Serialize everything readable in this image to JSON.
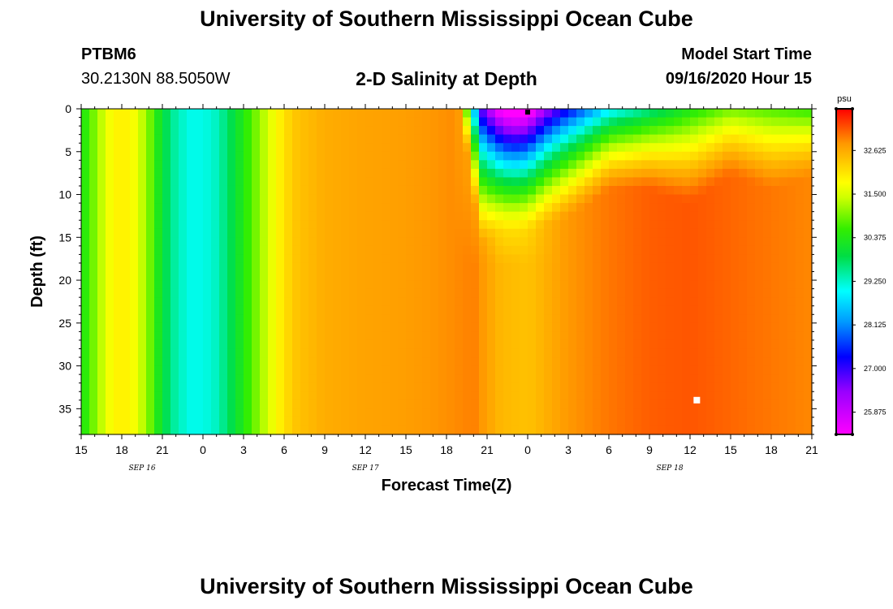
{
  "header": {
    "title": "University of Southern Mississippi Ocean Cube",
    "station_id": "PTBM6",
    "station_coords": "30.2130N 88.5050W",
    "chart_title": "2-D Salinity at Depth",
    "model_start_label": "Model Start Time",
    "model_start_value": "09/16/2020 Hour 15"
  },
  "footer": {
    "title": "University of Southern Mississippi Ocean Cube"
  },
  "chart_data": {
    "type": "heatmap",
    "title": "2-D Salinity at Depth",
    "xlabel": "Forecast Time(Z)",
    "ylabel": "Depth (ft)",
    "x_hours_range": [
      0,
      54
    ],
    "x_ticks": [
      {
        "h": 0,
        "label": "15"
      },
      {
        "h": 3,
        "label": "18"
      },
      {
        "h": 6,
        "label": "21"
      },
      {
        "h": 9,
        "label": "0"
      },
      {
        "h": 12,
        "label": "3"
      },
      {
        "h": 15,
        "label": "6"
      },
      {
        "h": 18,
        "label": "9"
      },
      {
        "h": 21,
        "label": "12"
      },
      {
        "h": 24,
        "label": "15"
      },
      {
        "h": 27,
        "label": "18"
      },
      {
        "h": 30,
        "label": "21"
      },
      {
        "h": 33,
        "label": "0"
      },
      {
        "h": 36,
        "label": "3"
      },
      {
        "h": 39,
        "label": "6"
      },
      {
        "h": 42,
        "label": "9"
      },
      {
        "h": 45,
        "label": "12"
      },
      {
        "h": 48,
        "label": "15"
      },
      {
        "h": 51,
        "label": "18"
      },
      {
        "h": 54,
        "label": "21"
      }
    ],
    "date_labels": [
      {
        "h": 4.5,
        "label": "SEP 16"
      },
      {
        "h": 21,
        "label": "SEP 17"
      },
      {
        "h": 43.5,
        "label": "SEP 18"
      }
    ],
    "y_range": [
      0,
      38
    ],
    "y_ticks": [
      0,
      5,
      10,
      15,
      20,
      25,
      30,
      35
    ],
    "colorbar": {
      "unit": "psu",
      "range": [
        25.3,
        33.7
      ],
      "labels": [
        "32.625",
        "31.500",
        "30.375",
        "29.250",
        "28.125",
        "27.000",
        "25.875"
      ],
      "label_values": [
        32.625,
        31.5,
        30.375,
        29.25,
        28.125,
        27.0,
        25.875
      ],
      "stops": [
        {
          "v": 25.3,
          "c": "#ff00ff"
        },
        {
          "v": 26.4,
          "c": "#9900ff"
        },
        {
          "v": 27.3,
          "c": "#0000ff"
        },
        {
          "v": 28.2,
          "c": "#0099ff"
        },
        {
          "v": 29.0,
          "c": "#00ffff"
        },
        {
          "v": 29.9,
          "c": "#00dd44"
        },
        {
          "v": 30.6,
          "c": "#33ee00"
        },
        {
          "v": 31.4,
          "c": "#ccff00"
        },
        {
          "v": 31.8,
          "c": "#ffff00"
        },
        {
          "v": 32.3,
          "c": "#ffcc00"
        },
        {
          "v": 32.8,
          "c": "#ff9900"
        },
        {
          "v": 33.2,
          "c": "#ff5500"
        },
        {
          "v": 33.7,
          "c": "#ff0000"
        }
      ]
    },
    "salinity_timeline": [
      {
        "h": 0,
        "s": 30.3
      },
      {
        "h": 1,
        "s": 31.0
      },
      {
        "h": 2,
        "s": 31.7
      },
      {
        "h": 3,
        "s": 32.0
      },
      {
        "h": 4,
        "s": 31.7
      },
      {
        "h": 5,
        "s": 31.0
      },
      {
        "h": 6,
        "s": 30.0
      },
      {
        "h": 7,
        "s": 29.4
      },
      {
        "h": 8,
        "s": 29.1
      },
      {
        "h": 9,
        "s": 29.1
      },
      {
        "h": 10,
        "s": 29.3
      },
      {
        "h": 11,
        "s": 29.8
      },
      {
        "h": 12,
        "s": 30.4
      },
      {
        "h": 13,
        "s": 31.0
      },
      {
        "h": 14,
        "s": 31.6
      },
      {
        "h": 15,
        "s": 32.1
      },
      {
        "h": 16,
        "s": 32.4
      },
      {
        "h": 18,
        "s": 32.6
      },
      {
        "h": 21,
        "s": 32.7
      },
      {
        "h": 24,
        "s": 32.75
      },
      {
        "h": 27,
        "s": 32.85
      },
      {
        "h": 29,
        "s": 32.95
      },
      {
        "h": 31,
        "s": 32.5
      },
      {
        "h": 33,
        "s": 32.4
      },
      {
        "h": 36,
        "s": 32.8
      },
      {
        "h": 39,
        "s": 33.0
      },
      {
        "h": 42,
        "s": 33.15
      },
      {
        "h": 45,
        "s": 33.2
      },
      {
        "h": 48,
        "s": 33.1
      },
      {
        "h": 51,
        "s": 33.0
      },
      {
        "h": 54,
        "s": 32.9
      }
    ],
    "surface_layer": [
      {
        "h": 0,
        "s": 30.3,
        "d": 0
      },
      {
        "h": 28,
        "s": 32.8,
        "d": 0
      },
      {
        "h": 29.5,
        "s": 27.5,
        "d": 10
      },
      {
        "h": 31,
        "s": 26.6,
        "d": 9
      },
      {
        "h": 33,
        "s": 25.8,
        "d": 9
      },
      {
        "h": 36,
        "s": 27.2,
        "d": 8
      },
      {
        "h": 39,
        "s": 28.8,
        "d": 6
      },
      {
        "h": 42,
        "s": 29.5,
        "d": 6
      },
      {
        "h": 45,
        "s": 30.3,
        "d": 7
      },
      {
        "h": 48,
        "s": 30.9,
        "d": 5
      },
      {
        "h": 51,
        "s": 30.7,
        "d": 6
      },
      {
        "h": 54,
        "s": 30.5,
        "d": 5
      }
    ],
    "markers": [
      {
        "h": 33,
        "depth": 0.2
      },
      {
        "h": 45.5,
        "depth": 34
      }
    ]
  }
}
